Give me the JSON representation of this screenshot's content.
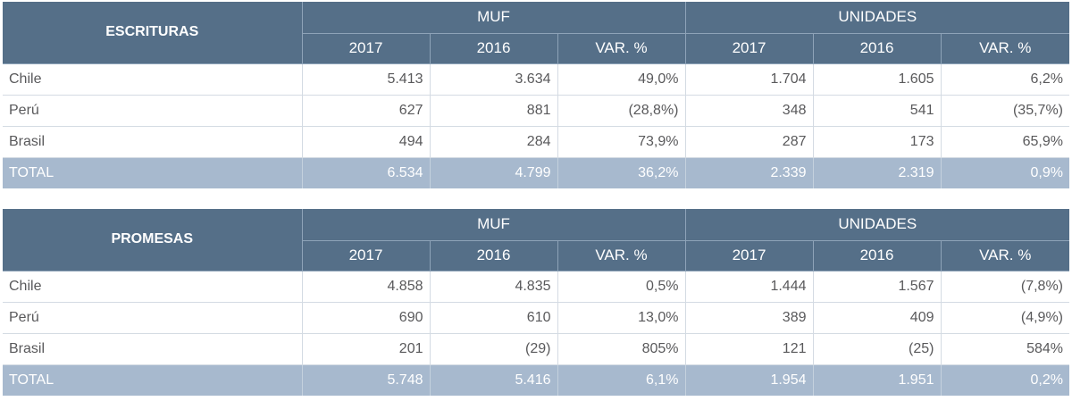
{
  "tables": [
    {
      "title": "ESCRITURAS",
      "group_muf": "MUF",
      "group_unidades": "UNIDADES",
      "cols": [
        "2017",
        "2016",
        "VAR. %",
        "2017",
        "2016",
        "VAR. %"
      ],
      "rows": [
        {
          "country": "Chile",
          "values": [
            "5.413",
            "3.634",
            "49,0%",
            "1.704",
            "1.605",
            "6,2%"
          ]
        },
        {
          "country": "Perú",
          "values": [
            "627",
            "881",
            "(28,8%)",
            "348",
            "541",
            "(35,7%)"
          ]
        },
        {
          "country": "Brasil",
          "values": [
            "494",
            "284",
            "73,9%",
            "287",
            "173",
            "65,9%"
          ]
        }
      ],
      "total": {
        "label": "TOTAL",
        "values": [
          "6.534",
          "4.799",
          "36,2%",
          "2.339",
          "2.319",
          "0,9%"
        ]
      }
    },
    {
      "title": "PROMESAS",
      "group_muf": "MUF",
      "group_unidades": "UNIDADES",
      "cols": [
        "2017",
        "2016",
        "VAR. %",
        "2017",
        "2016",
        "VAR. %"
      ],
      "rows": [
        {
          "country": "Chile",
          "values": [
            "4.858",
            "4.835",
            "0,5%",
            "1.444",
            "1.567",
            "(7,8%)"
          ]
        },
        {
          "country": "Perú",
          "values": [
            "690",
            "610",
            "13,0%",
            "389",
            "409",
            "(4,9%)"
          ]
        },
        {
          "country": "Brasil",
          "values": [
            "201",
            "(29)",
            "805%",
            "121",
            "(25)",
            "584%"
          ]
        }
      ],
      "total": {
        "label": "TOTAL",
        "values": [
          "5.748",
          "5.416",
          "6,1%",
          "1.954",
          "1.951",
          "0,2%"
        ]
      }
    }
  ],
  "colors": {
    "header_bg": "#556f88",
    "total_bg": "#a7b9ce",
    "text": "#59595b"
  }
}
